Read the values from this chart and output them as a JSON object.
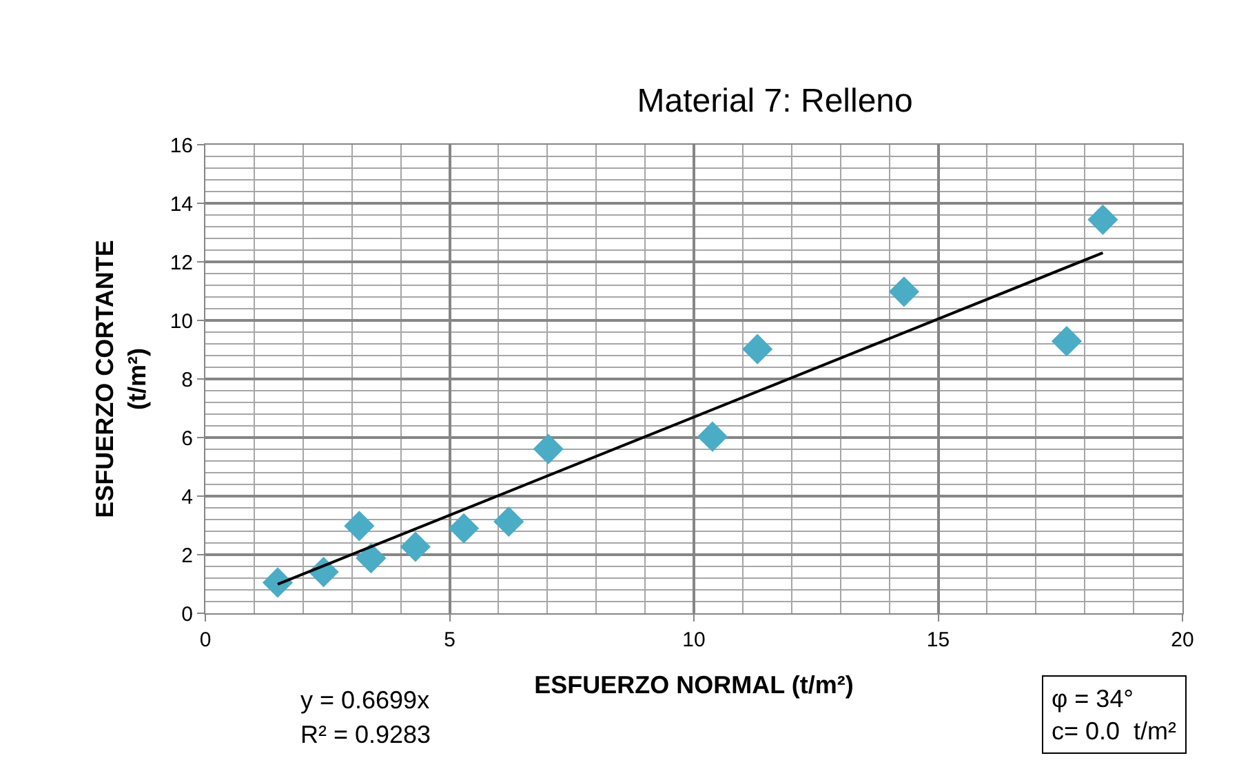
{
  "chart_data": {
    "type": "scatter",
    "title": "Material 7: Relleno",
    "xlabel": "ESFUERZO NORMAL (t/m²)",
    "ylabel": "ESFUERZO CORTANTE\n(t/m²)",
    "xlim": [
      0,
      20
    ],
    "xticks": [
      0,
      5,
      10,
      15,
      20
    ],
    "ylim": [
      0,
      16
    ],
    "yticks": [
      0,
      2,
      4,
      6,
      8,
      10,
      12,
      14,
      16
    ],
    "grid": true,
    "legend": false,
    "series": [
      {
        "marker": "diamond",
        "color": "#4bacc6",
        "x": [
          1.48,
          2.42,
          3.15,
          3.39,
          4.3,
          5.29,
          6.21,
          7.02,
          10.38,
          11.3,
          14.3,
          17.63,
          18.37
        ],
        "values": [
          1.05,
          1.41,
          2.98,
          1.88,
          2.27,
          2.9,
          3.13,
          5.61,
          6.03,
          9.02,
          10.98,
          9.29,
          13.44
        ]
      },
      {
        "type": "line",
        "marker": "none",
        "color": "#000000",
        "line_style": "solid",
        "x": [
          1.48,
          18.37
        ],
        "values": [
          0.99,
          12.31
        ]
      }
    ],
    "annotations": [
      "y = 0.6699x",
      "R² = 0.9283",
      "φ = 34°\nc= 0.0  t/m²"
    ]
  }
}
